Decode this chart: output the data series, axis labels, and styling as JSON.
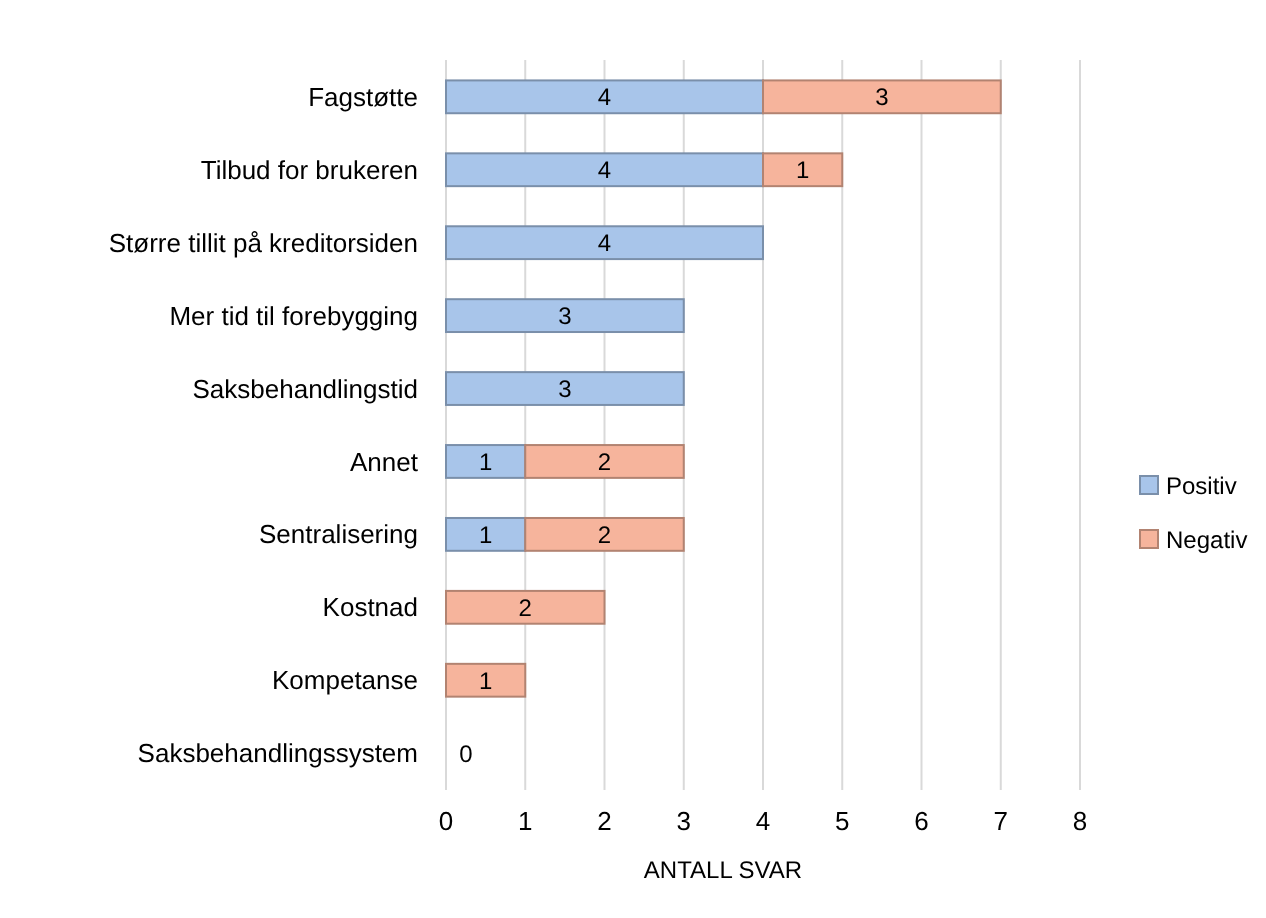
{
  "chart_data": {
    "type": "bar",
    "orientation": "horizontal",
    "stacked": true,
    "xlabel": "ANTALL SVAR",
    "categories": [
      "Fagstøtte",
      "Tilbud for brukeren",
      "Større tillit på kreditorsiden",
      "Mer tid til forebygging",
      "Saksbehandlingstid",
      "Annet",
      "Sentralisering",
      "Kostnad",
      "Kompetanse",
      "Saksbehandlingssystem"
    ],
    "series": [
      {
        "name": "Positiv",
        "color": "#a8c5ea",
        "values": [
          4,
          4,
          4,
          3,
          3,
          1,
          1,
          0,
          0,
          0
        ],
        "value_labels": [
          "4",
          "4",
          "4",
          "3",
          "3",
          "1",
          "1",
          null,
          null,
          "0"
        ]
      },
      {
        "name": "Negativ",
        "color": "#f6b49c",
        "values": [
          3,
          1,
          0,
          0,
          0,
          2,
          2,
          2,
          1,
          0
        ],
        "value_labels": [
          "3",
          "1",
          null,
          null,
          null,
          "2",
          "2",
          "2",
          "1",
          null
        ]
      }
    ],
    "xlim": [
      0,
      8
    ],
    "xticks": [
      0,
      1,
      2,
      3,
      4,
      5,
      6,
      7,
      8
    ],
    "grid": "x",
    "legend": "right"
  }
}
